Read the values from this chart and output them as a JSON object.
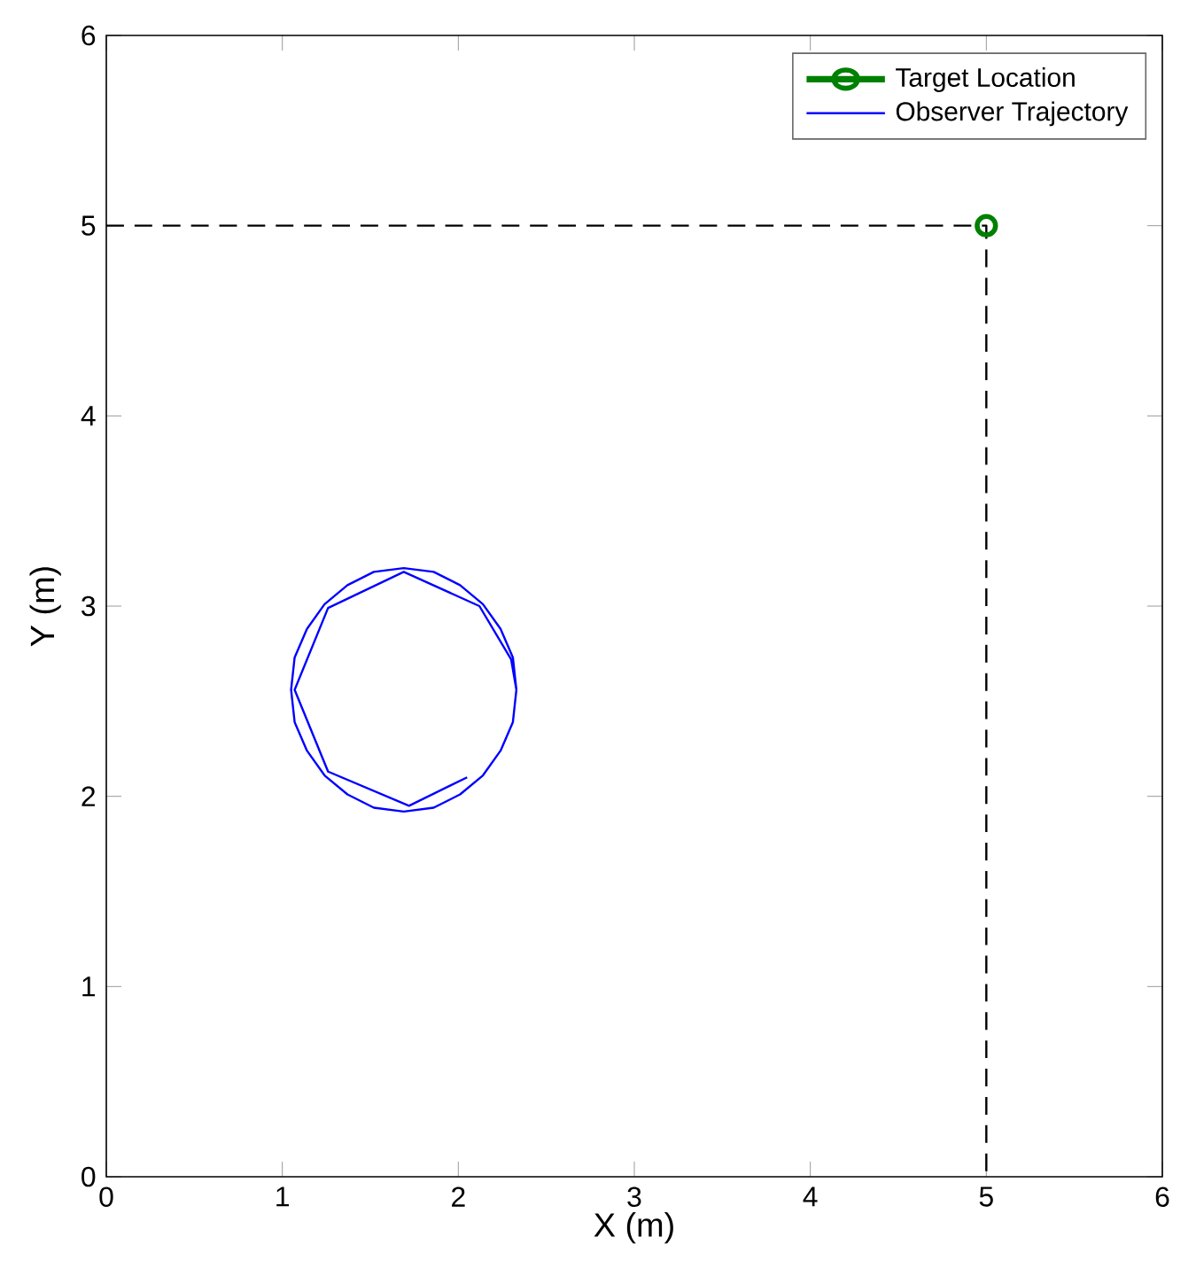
{
  "chart_data": {
    "type": "line",
    "xlabel": "X (m)",
    "ylabel": "Y (m)",
    "xlim": [
      0,
      6
    ],
    "ylim": [
      0,
      6
    ],
    "xticks": [
      0,
      1,
      2,
      3,
      4,
      5,
      6
    ],
    "yticks": [
      0,
      1,
      2,
      3,
      4,
      5,
      6
    ],
    "legend": "top right",
    "grid": false,
    "series": [
      {
        "x": [
          0,
          5,
          5
        ],
        "values": [
          5,
          5,
          0
        ],
        "color": "#000000",
        "line_style": "dashed",
        "marker": "none"
      },
      {
        "name": "Target Location",
        "x": [
          5
        ],
        "values": [
          5
        ],
        "color": "#008000",
        "marker": "circle",
        "line_style": "solid"
      },
      {
        "name": "Observer Trajectory",
        "color": "#0000ff",
        "marker": "none",
        "line_style": "solid",
        "x": [
          2.33,
          2.31,
          2.24,
          2.14,
          2.01,
          1.86,
          1.69,
          1.52,
          1.37,
          1.24,
          1.14,
          1.07,
          1.05,
          1.07,
          1.14,
          1.24,
          1.37,
          1.52,
          1.69,
          1.86,
          2.01,
          2.14,
          2.24,
          2.31,
          2.33,
          2.3,
          2.12,
          1.69,
          1.26,
          1.07,
          1.26,
          1.72,
          2.05
        ],
        "values": [
          2.56,
          2.73,
          2.88,
          3.01,
          3.11,
          3.18,
          3.2,
          3.18,
          3.11,
          3.01,
          2.88,
          2.73,
          2.56,
          2.39,
          2.24,
          2.11,
          2.01,
          1.94,
          1.92,
          1.94,
          2.01,
          2.11,
          2.24,
          2.39,
          2.56,
          2.72,
          3.0,
          3.18,
          2.99,
          2.56,
          2.13,
          1.95,
          2.1
        ]
      }
    ]
  }
}
